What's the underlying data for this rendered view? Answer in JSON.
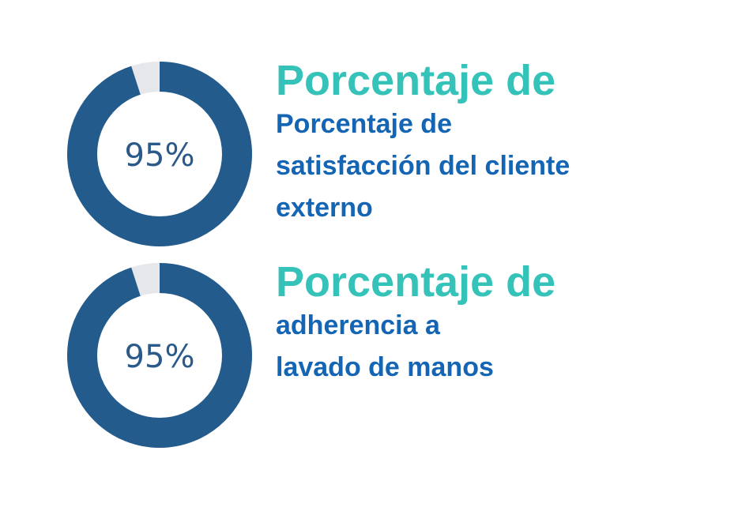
{
  "colors": {
    "ring_fill": "#235c8c",
    "ring_track": "#e6e7ea",
    "value_text": "#2b5a8a",
    "heading": "#35c3b9",
    "description": "#1565b5"
  },
  "chart_data": [
    {
      "type": "pie",
      "value": 95,
      "max": 100,
      "center_label": "95%",
      "heading": "Porcentaje de",
      "description_lines": [
        "Porcentaje de",
        "satisfacción del cliente",
        "externo"
      ]
    },
    {
      "type": "pie",
      "value": 95,
      "max": 100,
      "center_label": "95%",
      "heading": "Porcentaje de",
      "description_lines": [
        "adherencia a",
        "lavado de manos"
      ]
    }
  ]
}
